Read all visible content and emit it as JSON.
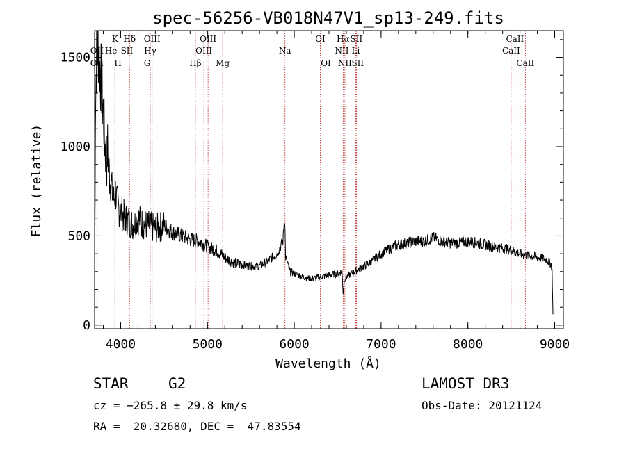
{
  "chart_data": {
    "type": "line",
    "title": "spec-56256-VB018N47V1_sp13-249.fits",
    "xlabel": "Wavelength (Å)",
    "ylabel": "Flux (relative)",
    "xlim": [
      3700,
      9100
    ],
    "ylim": [
      -20,
      1650
    ],
    "xticks": [
      4000,
      5000,
      6000,
      7000,
      8000,
      9000
    ],
    "yticks": [
      0,
      500,
      1000,
      1500
    ],
    "grid": false,
    "spectrum": {
      "name": "flux",
      "x": [
        3700,
        3710,
        3720,
        3730,
        3740,
        3750,
        3760,
        3770,
        3780,
        3790,
        3800,
        3810,
        3820,
        3830,
        3840,
        3850,
        3860,
        3870,
        3880,
        3890,
        3900,
        3920,
        3940,
        3960,
        3980,
        4000,
        4050,
        4100,
        4150,
        4200,
        4250,
        4300,
        4350,
        4400,
        4500,
        4600,
        4700,
        4800,
        4900,
        5000,
        5100,
        5200,
        5300,
        5400,
        5500,
        5600,
        5700,
        5800,
        5850,
        5870,
        5880,
        5890,
        5900,
        5920,
        5950,
        6000,
        6100,
        6200,
        6300,
        6400,
        6500,
        6550,
        6563,
        6580,
        6600,
        6700,
        6800,
        6900,
        7000,
        7100,
        7200,
        7300,
        7400,
        7500,
        7600,
        7700,
        7800,
        7900,
        8000,
        8100,
        8200,
        8300,
        8400,
        8500,
        8600,
        8700,
        8800,
        8900,
        8960,
        8970,
        8980
      ],
      "y": [
        100,
        1200,
        1500,
        1550,
        1600,
        1500,
        1450,
        1400,
        1350,
        1250,
        1200,
        1100,
        1000,
        950,
        900,
        1000,
        900,
        850,
        800,
        820,
        750,
        700,
        750,
        680,
        650,
        640,
        600,
        580,
        560,
        600,
        570,
        560,
        550,
        540,
        560,
        520,
        500,
        480,
        470,
        440,
        420,
        380,
        350,
        340,
        330,
        330,
        360,
        400,
        450,
        470,
        560,
        600,
        380,
        350,
        300,
        290,
        270,
        260,
        270,
        280,
        290,
        300,
        180,
        260,
        270,
        300,
        330,
        360,
        400,
        430,
        450,
        460,
        470,
        470,
        490,
        470,
        460,
        460,
        470,
        460,
        450,
        440,
        430,
        420,
        400,
        390,
        380,
        370,
        340,
        300,
        60
      ]
    },
    "line_markers": [
      {
        "label": "Hδ",
        "wl": 4102,
        "row": 0
      },
      {
        "label": "K",
        "wl": 3934,
        "row": 0
      },
      {
        "label": "H",
        "wl": 3969,
        "row": 2
      },
      {
        "label": "Hδ",
        "wl": 4102,
        "row": 0
      },
      {
        "label": "OIII",
        "wl": 4363,
        "row": 0
      },
      {
        "label": "Hγ",
        "wl": 4341,
        "row": 1
      },
      {
        "label": "G",
        "wl": 4305,
        "row": 2
      },
      {
        "label": "OII",
        "wl": 3727,
        "row": 1
      },
      {
        "label": "OII",
        "wl": 3727,
        "row": 2
      },
      {
        "label": "He",
        "wl": 3889,
        "row": 1
      },
      {
        "label": "SII",
        "wl": 4072,
        "row": 1
      },
      {
        "label": "Hβ",
        "wl": 4861,
        "row": 2
      },
      {
        "label": "OIII",
        "wl": 4959,
        "row": 1
      },
      {
        "label": "OIII",
        "wl": 5007,
        "row": 0
      },
      {
        "label": "Mg",
        "wl": 5175,
        "row": 2
      },
      {
        "label": "Na",
        "wl": 5893,
        "row": 1
      },
      {
        "label": "OI",
        "wl": 6300,
        "row": 0
      },
      {
        "label": "OI",
        "wl": 6364,
        "row": 2
      },
      {
        "label": "Hα",
        "wl": 6563,
        "row": 0
      },
      {
        "label": "NII",
        "wl": 6548,
        "row": 1
      },
      {
        "label": "NII",
        "wl": 6583,
        "row": 2
      },
      {
        "label": "SII",
        "wl": 6716,
        "row": 0
      },
      {
        "label": "Li",
        "wl": 6708,
        "row": 1
      },
      {
        "label": "SII",
        "wl": 6731,
        "row": 2
      },
      {
        "label": "CaII",
        "wl": 8542,
        "row": 0
      },
      {
        "label": "CaII",
        "wl": 8498,
        "row": 1
      },
      {
        "label": "CaII",
        "wl": 8662,
        "row": 2
      }
    ]
  },
  "info": {
    "object_class": "STAR",
    "subclass": "G2",
    "survey": "LAMOST DR3",
    "cz": "cz = −265.8 ± 29.8 km/s",
    "obs_date": "Obs-Date: 20121124",
    "coords": "RA =  20.32680, DEC =  47.83554"
  }
}
